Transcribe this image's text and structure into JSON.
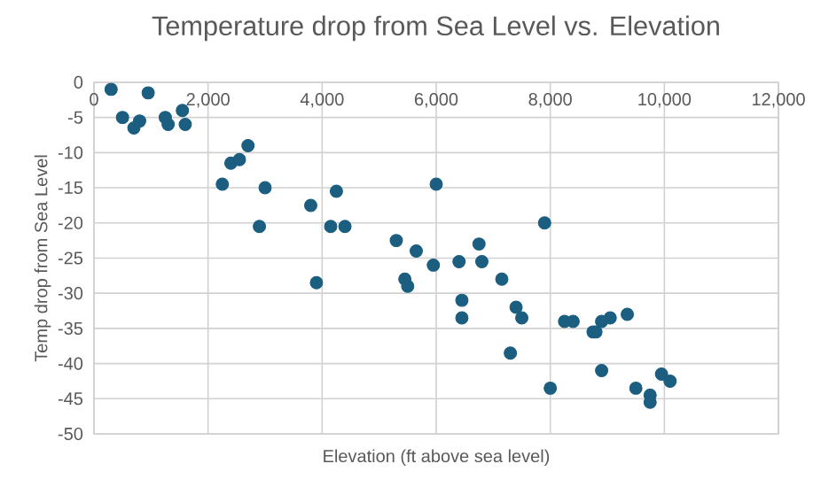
{
  "chart_data": {
    "type": "scatter",
    "title": "Temperature drop from Sea Level  vs. Elevation",
    "xlabel": "Elevation (ft above sea level)",
    "ylabel": "Temp drop from Sea Level",
    "x": [
      300,
      950,
      500,
      800,
      700,
      1250,
      1300,
      1550,
      1600,
      2700,
      2400,
      2550,
      2250,
      3000,
      2900,
      3800,
      4250,
      4150,
      4400,
      5300,
      5650,
      6000,
      5950,
      7900,
      6750,
      6400,
      6800,
      3900,
      5450,
      5500,
      7150,
      6450,
      6450,
      7400,
      7500,
      7300,
      8250,
      8400,
      8900,
      9050,
      8750,
      8800,
      9350,
      8900,
      8000,
      9500,
      9750,
      9750,
      9950,
      10100
    ],
    "values": [
      -1,
      -1.5,
      -5,
      -5.5,
      -6.5,
      -5,
      -6,
      -4,
      -6,
      -9,
      -11.5,
      -11,
      -14.5,
      -15,
      -20.5,
      -17.5,
      -15.5,
      -20.5,
      -20.5,
      -22.5,
      -24,
      -14.5,
      -26,
      -20,
      -23,
      -25.5,
      -25.5,
      -28.5,
      -28,
      -29,
      -28,
      -31,
      -33.5,
      -32,
      -33.5,
      -38.5,
      -34,
      -34,
      -34,
      -33.5,
      -35.5,
      -35.5,
      -33,
      -41,
      -43.5,
      -43.5,
      -44.5,
      -45.5,
      -41.5,
      -42.5
    ],
    "color": "#1b5e80",
    "marker": "circle",
    "grid": true,
    "xlim": [
      0,
      12000
    ],
    "ylim": [
      -50,
      0
    ],
    "xticks": [
      0,
      {
        "value": 2000,
        "label": "2,000"
      },
      {
        "value": 4000,
        "label": "4,000"
      },
      {
        "value": 6000,
        "label": "6,000"
      },
      {
        "value": 8000,
        "label": "8,000"
      },
      {
        "value": 10000,
        "label": "10,000"
      },
      {
        "value": 12000,
        "label": "12,000"
      }
    ],
    "yticks": [
      0,
      -5,
      -10,
      -15,
      -20,
      -25,
      -30,
      -35,
      -40,
      -45,
      -50
    ]
  }
}
